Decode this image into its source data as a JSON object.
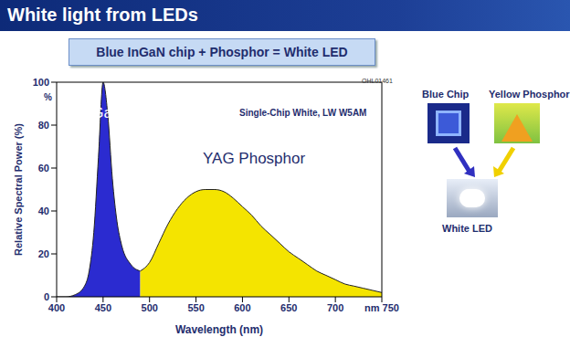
{
  "slide": {
    "title": "White light from LEDs",
    "subtitle": "Blue InGaN chip + Phosphor = White LED",
    "pictures": [
      "Blue Chip",
      "Yellow Phosphor",
      "White LED"
    ]
  },
  "chart_data": {
    "type": "area",
    "xlabel": "Wavelength (nm)",
    "ylabel": "Relative Spectral Power (%)",
    "annotations": [
      "InGaN LED",
      "YAG Phosphor",
      "Single-Chip White, LW W5AM",
      "OHL01461",
      "%"
    ],
    "x": [
      400,
      410,
      420,
      430,
      435,
      440,
      445,
      450,
      455,
      460,
      465,
      470,
      480,
      490,
      500,
      510,
      520,
      530,
      540,
      550,
      560,
      570,
      580,
      590,
      600,
      610,
      620,
      630,
      640,
      650,
      660,
      670,
      680,
      690,
      700,
      710,
      720,
      730,
      740,
      750
    ],
    "series": [
      {
        "name": "InGaN LED",
        "color": "#2b2bd0",
        "values": [
          0,
          0,
          1,
          5,
          12,
          30,
          65,
          100,
          85,
          55,
          35,
          24,
          15,
          12,
          null,
          null,
          null,
          null,
          null,
          null,
          null,
          null,
          null,
          null,
          null,
          null,
          null,
          null,
          null,
          null,
          null,
          null,
          null,
          null,
          null,
          null,
          null,
          null,
          null,
          null
        ]
      },
      {
        "name": "YAG Phosphor",
        "color": "#f4e400",
        "values": [
          null,
          null,
          null,
          null,
          null,
          null,
          null,
          null,
          null,
          null,
          null,
          null,
          null,
          12,
          16,
          25,
          34,
          41,
          46,
          49,
          50,
          50,
          49,
          46,
          42,
          38,
          33,
          29,
          25,
          21,
          18,
          15,
          12,
          10,
          8,
          6,
          5,
          4,
          3,
          2
        ]
      }
    ],
    "xlim": [
      400,
      750
    ],
    "xticks": [
      400,
      450,
      500,
      550,
      600,
      650,
      700,
      {
        "value": 750,
        "label": "nm 750"
      }
    ],
    "ylim": [
      0,
      100
    ],
    "yticks": [
      0,
      20,
      40,
      60,
      80,
      100
    ],
    "grid": false
  }
}
